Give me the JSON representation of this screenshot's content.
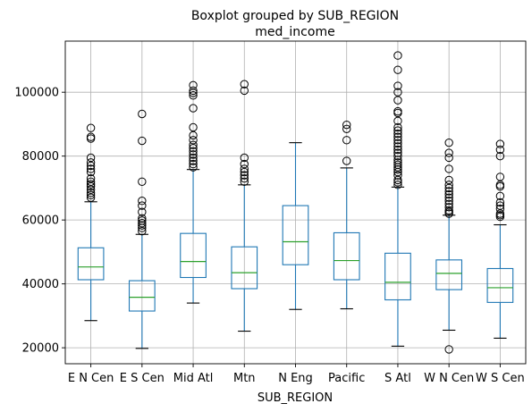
{
  "chart_data": {
    "type": "boxplot",
    "title": "Boxplot grouped by SUB_REGION",
    "subtitle": "med_income",
    "xlabel": "SUB_REGION",
    "ylabel": "",
    "ylim": [
      15000,
      116000
    ],
    "yticks": [
      20000,
      40000,
      60000,
      80000,
      100000
    ],
    "grid": true,
    "colors": {
      "box": "#1f77b4",
      "median": "#2ca02c",
      "whisker": "#000000",
      "flier": "#000000",
      "grid": "#b0b0b0"
    },
    "categories": [
      "E N Cen",
      "E S Cen",
      "Mid Atl",
      "Mtn",
      "N Eng",
      "Pacific",
      "S Atl",
      "W N Cen",
      "W S Cen"
    ],
    "boxes": [
      {
        "label": "E N Cen",
        "whislo": 28500,
        "q1": 41300,
        "med": 45300,
        "q3": 51300,
        "whishi": 65700,
        "fliers": [
          67000,
          67800,
          68500,
          69500,
          70500,
          71200,
          72000,
          73000,
          75000,
          76000,
          77000,
          78000,
          79500,
          85500,
          86000,
          88800
        ]
      },
      {
        "label": "E S Cen",
        "whislo": 19800,
        "q1": 31500,
        "med": 35800,
        "q3": 41000,
        "whishi": 55500,
        "fliers": [
          56500,
          57500,
          58300,
          59000,
          59800,
          60500,
          62500,
          64500,
          66000,
          72000,
          84800,
          93200
        ]
      },
      {
        "label": "Mid Atl",
        "whislo": 34000,
        "q1": 42000,
        "med": 47000,
        "q3": 55800,
        "whishi": 75800,
        "fliers": [
          76500,
          77500,
          78500,
          79500,
          80500,
          81500,
          82500,
          83500,
          85000,
          86500,
          89000,
          95000,
          99000,
          99800,
          100500,
          102200
        ]
      },
      {
        "label": "Mtn",
        "whislo": 25200,
        "q1": 38500,
        "med": 43500,
        "q3": 51600,
        "whishi": 71000,
        "fliers": [
          72000,
          73000,
          74000,
          75000,
          76000,
          77500,
          79500,
          100500,
          102500
        ]
      },
      {
        "label": "N Eng",
        "whislo": 32000,
        "q1": 46000,
        "med": 53200,
        "q3": 64500,
        "whishi": 84200,
        "fliers": []
      },
      {
        "label": "Pacific",
        "whislo": 32200,
        "q1": 41300,
        "med": 47300,
        "q3": 56000,
        "whishi": 76300,
        "fliers": [
          78500,
          85000,
          88500,
          89800
        ]
      },
      {
        "label": "S Atl",
        "whislo": 20500,
        "q1": 35000,
        "med": 40500,
        "q3": 49600,
        "whishi": 70300,
        "fliers": [
          71000,
          71800,
          72500,
          74000,
          75000,
          75800,
          76500,
          77300,
          78000,
          78800,
          80000,
          81000,
          82000,
          83000,
          84000,
          85000,
          86000,
          87000,
          88000,
          89000,
          91000,
          93500,
          94000,
          97500,
          100000,
          102000,
          107000,
          111500
        ]
      },
      {
        "label": "W N Cen",
        "whislo": 25500,
        "q1": 38200,
        "med": 43300,
        "q3": 47500,
        "whishi": 61500,
        "fliers": [
          62000,
          62500,
          63000,
          64000,
          65000,
          66000,
          67000,
          68000,
          69000,
          70000,
          71000,
          72500,
          76000,
          79500,
          81000,
          84200,
          19500
        ]
      },
      {
        "label": "W S Cen",
        "whislo": 23000,
        "q1": 34200,
        "med": 38800,
        "q3": 44800,
        "whishi": 58500,
        "fliers": [
          61000,
          61500,
          62000,
          63500,
          64500,
          65500,
          67500,
          70500,
          71000,
          73500,
          80000,
          82000,
          83800
        ]
      }
    ]
  }
}
